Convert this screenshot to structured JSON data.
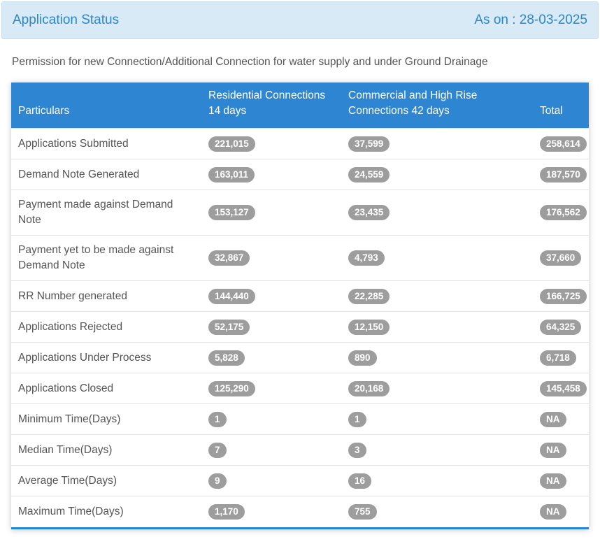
{
  "header": {
    "title": "Application Status",
    "as_on": "As on : 28-03-2025"
  },
  "subtitle": "Permission for new Connection/Additional Connection for water supply and under Ground Drainage",
  "table": {
    "columns": {
      "particulars": "Particulars",
      "residential": "Residential Connections 14 days",
      "commercial": "Commercial and High Rise Connections 42 days",
      "total": "Total"
    },
    "rows": [
      {
        "label": "Applications Submitted",
        "residential": "221,015",
        "commercial": "37,599",
        "total": "258,614"
      },
      {
        "label": "Demand Note Generated",
        "residential": "163,011",
        "commercial": "24,559",
        "total": "187,570"
      },
      {
        "label": "Payment made against Demand Note",
        "residential": "153,127",
        "commercial": "23,435",
        "total": "176,562"
      },
      {
        "label": "Payment yet to be made against Demand Note",
        "residential": "32,867",
        "commercial": "4,793",
        "total": "37,660"
      },
      {
        "label": "RR Number generated",
        "residential": "144,440",
        "commercial": "22,285",
        "total": "166,725"
      },
      {
        "label": "Applications Rejected",
        "residential": "52,175",
        "commercial": "12,150",
        "total": "64,325"
      },
      {
        "label": "Applications Under Process",
        "residential": "5,828",
        "commercial": "890",
        "total": "6,718"
      },
      {
        "label": "Applications Closed",
        "residential": "125,290",
        "commercial": "20,168",
        "total": "145,458"
      },
      {
        "label": "Minimum Time(Days)",
        "residential": "1",
        "commercial": "1",
        "total": "NA"
      },
      {
        "label": "Median Time(Days)",
        "residential": "7",
        "commercial": "3",
        "total": "NA"
      },
      {
        "label": "Average Time(Days)",
        "residential": "9",
        "commercial": "16",
        "total": "NA"
      },
      {
        "label": "Maximum Time(Days)",
        "residential": "1,170",
        "commercial": "755",
        "total": "NA"
      }
    ]
  },
  "colors": {
    "header_bar_bg": "#d8eaf5",
    "header_bar_text": "#2e86c9",
    "table_header_bg": "#2e86d2",
    "table_header_text": "#ffffff",
    "badge_bg": "#9d9d9d",
    "badge_text": "#ffffff",
    "row_text": "#555555",
    "bottom_line": "#2287d8"
  }
}
